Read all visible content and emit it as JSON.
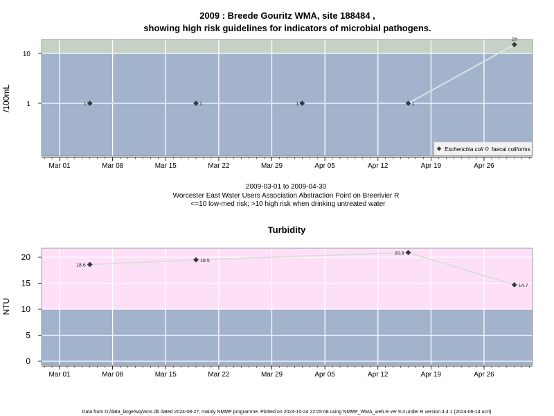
{
  "header": {
    "title_line1": "2009 : Breede Gouritz WMA, site 188484 ,",
    "title_line2": "showing high risk guidelines for indicators of microbial pathogens."
  },
  "middle_text": {
    "date_range": "2009-03-01 to 2009-04-30",
    "site_name": "Worcester East Water Users Association Abstraction Point on Breerivier R",
    "risk_note": "<=10 low-med risk; >10 high risk when drinking untreated water"
  },
  "footer": {
    "note": "Data from D:/data_large/wq/wms.db dated 2024-08-27, mainly NMMP programme. Plotted on 2024-10-24 22:05:08 using NMMP_WMA_web.R ver 9.3 under R version 4.4.1 (2024-06-14 ucrt)"
  },
  "chart_data": [
    {
      "type": "line",
      "scale": "log",
      "title": "",
      "xlabel": "",
      "ylabel": "/100mL",
      "x_ticks": [
        "Mar 01",
        "Mar 08",
        "Mar 15",
        "Mar 22",
        "Mar 29",
        "Apr 05",
        "Apr 12",
        "Apr 19",
        "Apr 26"
      ],
      "x_tick_dates": [
        "2009-03-01",
        "2009-03-08",
        "2009-03-15",
        "2009-03-22",
        "2009-03-29",
        "2009-04-05",
        "2009-04-12",
        "2009-04-19",
        "2009-04-26"
      ],
      "xlim": [
        "2008-02-26",
        "2009-05-03"
      ],
      "y_ticks": [
        1,
        10
      ],
      "y_tick_labels": [
        "1",
        "10"
      ],
      "ylim": [
        0.13,
        17.5
      ],
      "threshold": 10,
      "colors": {
        "low_band": "#a2b3cb",
        "high_band": "#c6d1c6",
        "grid": "#ffffff",
        "line": "#dde3ea",
        "marker": "#3a3a3a"
      },
      "legend_position": "bottom-right",
      "series": [
        {
          "name": "Escherichia coli",
          "marker": "filled-diamond",
          "x": [
            "2009-03-05",
            "2009-03-19",
            "2009-04-02",
            "2009-04-16",
            "2009-04-30"
          ],
          "values": [
            1,
            1,
            1,
            1,
            15
          ],
          "labels": [
            "1",
            "1",
            "1",
            "1",
            "15"
          ],
          "label_side": [
            "left",
            "right",
            "left",
            "right",
            "above"
          ]
        },
        {
          "name": "faecal coliforms",
          "marker": "open-diamond",
          "x": [],
          "values": []
        }
      ]
    },
    {
      "type": "line",
      "title": "Turbidity",
      "xlabel": "",
      "ylabel": "NTU",
      "x_ticks": [
        "Mar 01",
        "Mar 08",
        "Mar 15",
        "Mar 22",
        "Mar 29",
        "Apr 05",
        "Apr 12",
        "Apr 19",
        "Apr 26"
      ],
      "x_tick_dates": [
        "2009-03-01",
        "2009-03-08",
        "2009-03-15",
        "2009-03-22",
        "2009-03-29",
        "2009-04-05",
        "2009-04-12",
        "2009-04-19",
        "2009-04-26"
      ],
      "y_ticks": [
        0,
        5,
        10,
        15,
        20
      ],
      "y_tick_labels": [
        "0",
        "5",
        "10",
        "15",
        "20"
      ],
      "ylim": [
        -1,
        22
      ],
      "threshold": 10,
      "colors": {
        "low_band": "#a2b3cb",
        "high_band": "#fde0f8",
        "grid": "#ffffff",
        "line": "#dedede",
        "marker": "#3a3a3a"
      },
      "series": [
        {
          "name": "",
          "marker": "filled-diamond",
          "x": [
            "2009-03-05",
            "2009-03-19",
            "2009-04-16",
            "2009-04-30"
          ],
          "values": [
            18.6,
            19.5,
            20.9,
            14.7
          ],
          "labels": [
            "18.6",
            "19.5",
            "20.9",
            "14.7"
          ],
          "label_side": [
            "left",
            "right",
            "left",
            "right"
          ]
        }
      ]
    }
  ]
}
